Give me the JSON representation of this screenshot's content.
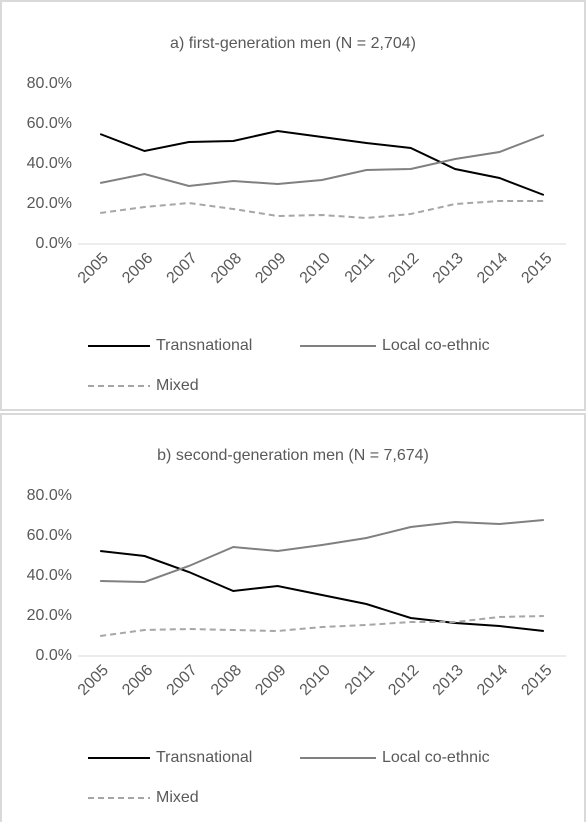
{
  "chart_data": [
    {
      "type": "line",
      "title": "a) first-generation men (N = 2,704)",
      "categories": [
        "2005",
        "2006",
        "2007",
        "2008",
        "2009",
        "2010",
        "2011",
        "2012",
        "2013",
        "2014",
        "2015"
      ],
      "series": [
        {
          "name": "Transnational",
          "color": "#000000",
          "dash": false,
          "values": [
            55,
            46.5,
            51,
            51.5,
            56.5,
            53.5,
            50.5,
            48,
            37.5,
            33,
            24.5
          ]
        },
        {
          "name": "Local co-ethnic",
          "color": "#808080",
          "dash": false,
          "values": [
            30.5,
            35,
            29,
            31.5,
            30,
            32,
            37,
            37.5,
            42.5,
            46,
            54.5
          ]
        },
        {
          "name": "Mixed",
          "color": "#a6a6a6",
          "dash": true,
          "values": [
            15.5,
            18.5,
            20.5,
            17.5,
            14,
            14.5,
            13,
            15,
            20,
            21.5,
            21.5
          ]
        }
      ],
      "ylim": [
        0,
        80
      ],
      "yticks": [
        {
          "value": 0,
          "label": "0.0%"
        },
        {
          "value": 20,
          "label": "20.0%"
        },
        {
          "value": 40,
          "label": "40.0%"
        },
        {
          "value": 60,
          "label": "60.0%"
        },
        {
          "value": 80,
          "label": "80.0%"
        }
      ],
      "grid": false,
      "legend_position": "bottom"
    },
    {
      "type": "line",
      "title": "b) second-generation men (N = 7,674)",
      "categories": [
        "2005",
        "2006",
        "2007",
        "2008",
        "2009",
        "2010",
        "2011",
        "2012",
        "2013",
        "2014",
        "2015"
      ],
      "series": [
        {
          "name": "Transnational",
          "color": "#000000",
          "dash": false,
          "values": [
            52.5,
            50,
            42,
            32.5,
            35,
            30.5,
            26,
            19,
            16.5,
            15,
            12.5
          ]
        },
        {
          "name": "Local co-ethnic",
          "color": "#808080",
          "dash": false,
          "values": [
            37.5,
            37,
            45,
            54.5,
            52.5,
            55.5,
            59,
            64.5,
            67,
            66,
            68
          ]
        },
        {
          "name": "Mixed",
          "color": "#a6a6a6",
          "dash": true,
          "values": [
            10,
            13,
            13.5,
            13,
            12.5,
            14.5,
            15.5,
            17,
            17,
            19.5,
            20
          ]
        }
      ],
      "ylim": [
        0,
        80
      ],
      "yticks": [
        {
          "value": 0,
          "label": "0.0%"
        },
        {
          "value": 20,
          "label": "20.0%"
        },
        {
          "value": 40,
          "label": "40.0%"
        },
        {
          "value": 60,
          "label": "60.0%"
        },
        {
          "value": 80,
          "label": "80.0%"
        }
      ],
      "grid": false,
      "legend_position": "bottom"
    }
  ]
}
